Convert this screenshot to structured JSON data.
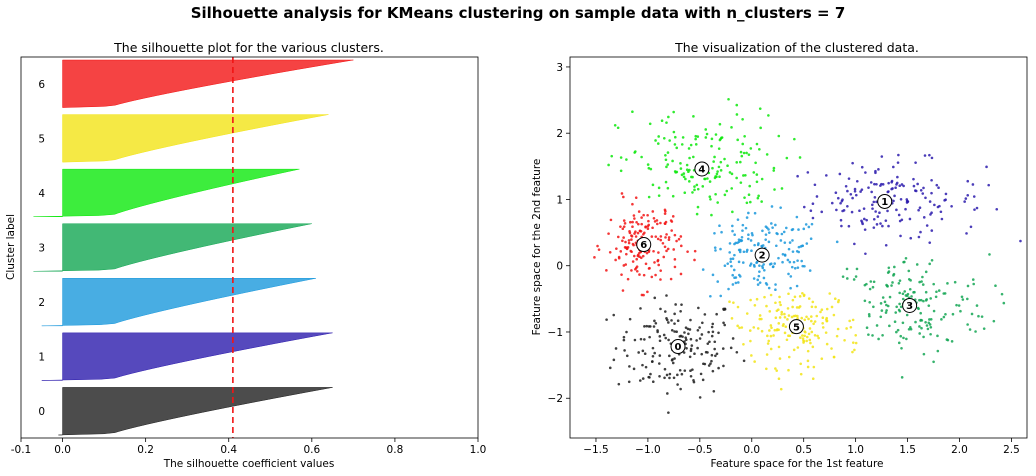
{
  "figure": {
    "suptitle": "Silhouette analysis for KMeans clustering on sample data with n_clusters = 7"
  },
  "chart_data": [
    {
      "type": "bar",
      "title": "The silhouette plot for the various clusters.",
      "xlabel": "The silhouette coefficient values",
      "ylabel": "Cluster label",
      "xlim": [
        -0.1,
        1.0
      ],
      "xticks": [
        -0.1,
        0.0,
        0.2,
        0.4,
        0.6,
        0.8,
        1.0
      ],
      "xtick_labels": [
        "-0.1",
        "0.0",
        "0.2",
        "0.4",
        "0.6",
        "0.8",
        "1.0"
      ],
      "average_silhouette": 0.41,
      "clusters": [
        {
          "label": "0",
          "min": -0.01,
          "max": 0.65,
          "color": "#1f1f1f"
        },
        {
          "label": "1",
          "min": -0.05,
          "max": 0.65,
          "color": "#2c1bad"
        },
        {
          "label": "2",
          "min": -0.05,
          "max": 0.61,
          "color": "#1a98dc"
        },
        {
          "label": "3",
          "min": -0.07,
          "max": 0.6,
          "color": "#13a653"
        },
        {
          "label": "4",
          "min": -0.07,
          "max": 0.57,
          "color": "#0ce80c"
        },
        {
          "label": "5",
          "min": 0.0,
          "max": 0.64,
          "color": "#f2e416"
        },
        {
          "label": "6",
          "min": 0.0,
          "max": 0.7,
          "color": "#f21414"
        }
      ]
    },
    {
      "type": "scatter",
      "title": "The visualization of the clustered data.",
      "xlabel": "Feature space for the 1st feature",
      "ylabel": "Feature space for the 2nd feature",
      "xlim": [
        -1.75,
        2.65
      ],
      "ylim": [
        -2.6,
        3.15
      ],
      "xticks": [
        -1.5,
        -1.0,
        -0.5,
        0.0,
        0.5,
        1.0,
        1.5,
        2.0,
        2.5
      ],
      "xtick_labels": [
        "−1.5",
        "−1.0",
        "−0.5",
        "0.0",
        "0.5",
        "1.0",
        "1.5",
        "2.0",
        "2.5"
      ],
      "yticks": [
        -2,
        -1,
        0,
        1,
        2,
        3
      ],
      "ytick_labels": [
        "−2",
        "−1",
        "0",
        "1",
        "2",
        "3"
      ],
      "clusters": [
        {
          "label": "0",
          "center": [
            -0.71,
            -1.22
          ],
          "color": "#1f1f1f"
        },
        {
          "label": "1",
          "center": [
            1.28,
            0.97
          ],
          "color": "#2c1bad"
        },
        {
          "label": "2",
          "center": [
            0.1,
            0.16
          ],
          "color": "#1a98dc"
        },
        {
          "label": "3",
          "center": [
            1.52,
            -0.6
          ],
          "color": "#13a653"
        },
        {
          "label": "4",
          "center": [
            -0.48,
            1.46
          ],
          "color": "#0ce80c"
        },
        {
          "label": "5",
          "center": [
            0.43,
            -0.92
          ],
          "color": "#f2e416"
        },
        {
          "label": "6",
          "center": [
            -1.04,
            0.32
          ],
          "color": "#f21414"
        }
      ]
    }
  ]
}
